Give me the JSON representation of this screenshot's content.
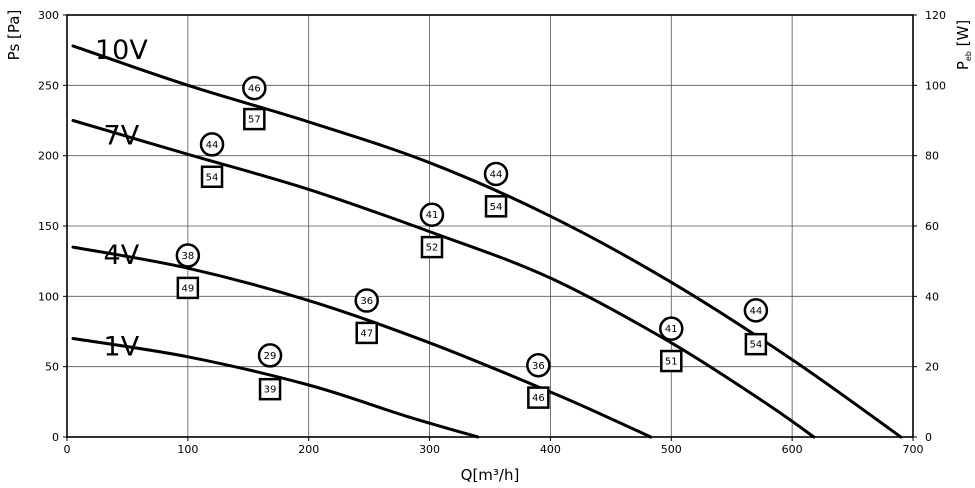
{
  "chart_data": {
    "type": "line",
    "xlabel": "Q[m³/h]",
    "ylabel": "Ps [Pa]",
    "y2label": "P",
    "y2label_sub": "eb",
    "y2label_unit": " [W]",
    "xlim": [
      0,
      700
    ],
    "ylim": [
      0,
      300
    ],
    "y2lim": [
      0,
      120
    ],
    "x_ticks": [
      "0",
      "100",
      "200",
      "300",
      "400",
      "500",
      "600",
      "700"
    ],
    "y_ticks": [
      "0",
      "50",
      "100",
      "150",
      "200",
      "250",
      "300"
    ],
    "y2_ticks": [
      "0",
      "20",
      "40",
      "60",
      "80",
      "100",
      "120"
    ],
    "grid": true,
    "series": [
      {
        "name": "10V",
        "x": [
          5,
          100,
          200,
          300,
          400,
          500,
          600,
          690
        ],
        "y": [
          278,
          250,
          224,
          195,
          157,
          110,
          55,
          0
        ]
      },
      {
        "name": "7V",
        "x": [
          5,
          100,
          200,
          300,
          400,
          500,
          580,
          618
        ],
        "y": [
          225,
          201,
          176,
          146,
          113,
          67,
          23,
          0
        ]
      },
      {
        "name": "4V",
        "x": [
          5,
          100,
          200,
          300,
          400,
          450,
          483
        ],
        "y": [
          135,
          120,
          97,
          67,
          32,
          13,
          0
        ]
      },
      {
        "name": "1V",
        "x": [
          5,
          100,
          200,
          280,
          340
        ],
        "y": [
          70,
          57,
          37,
          15,
          0
        ]
      }
    ],
    "circle_markers": [
      {
        "x": 155,
        "y": 248,
        "label": "46"
      },
      {
        "x": 120,
        "y": 208,
        "label": "44"
      },
      {
        "x": 355,
        "y": 187,
        "label": "44"
      },
      {
        "x": 302,
        "y": 158,
        "label": "41"
      },
      {
        "x": 100,
        "y": 129,
        "label": "38"
      },
      {
        "x": 248,
        "y": 97,
        "label": "36"
      },
      {
        "x": 500,
        "y": 77,
        "label": "41"
      },
      {
        "x": 570,
        "y": 90,
        "label": "44"
      },
      {
        "x": 168,
        "y": 58,
        "label": "29"
      },
      {
        "x": 390,
        "y": 51,
        "label": "36"
      }
    ],
    "square_markers": [
      {
        "x": 155,
        "y": 226,
        "label": "57"
      },
      {
        "x": 120,
        "y": 185,
        "label": "54"
      },
      {
        "x": 355,
        "y": 164,
        "label": "54"
      },
      {
        "x": 302,
        "y": 135,
        "label": "52"
      },
      {
        "x": 100,
        "y": 106,
        "label": "49"
      },
      {
        "x": 248,
        "y": 74,
        "label": "47"
      },
      {
        "x": 500,
        "y": 54,
        "label": "51"
      },
      {
        "x": 570,
        "y": 66,
        "label": "54"
      },
      {
        "x": 168,
        "y": 34,
        "label": "39"
      },
      {
        "x": 390,
        "y": 28,
        "label": "46"
      }
    ],
    "curve_labels": [
      {
        "x": 45,
        "y": 276,
        "label": "10V"
      },
      {
        "x": 45,
        "y": 215,
        "label": "7V"
      },
      {
        "x": 45,
        "y": 130,
        "label": "4V"
      },
      {
        "x": 45,
        "y": 65,
        "label": "1V"
      }
    ]
  }
}
